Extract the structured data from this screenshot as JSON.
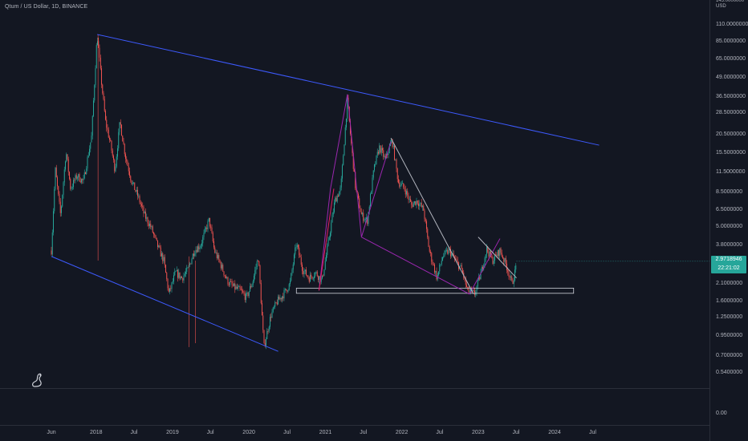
{
  "header": {
    "title": "Qtum / US Dollar, 1D, BINANCE"
  },
  "chart_data": {
    "type": "candlestick",
    "title": "Qtum / US Dollar, 1D, BINANCE",
    "y_scale": "log",
    "y_unit": "USD",
    "y_ticks": [
      "110.0000000",
      "85.0000000",
      "65.0000000",
      "49.0000000",
      "36.5000000",
      "28.5000000",
      "20.5000000",
      "15.5000000",
      "11.5000000",
      "8.5000000",
      "6.5000000",
      "5.0000000",
      "3.8000000",
      "2.1000000",
      "1.6000000",
      "1.2500000",
      "0.9500000",
      "0.7000000",
      "0.5400000"
    ],
    "y_tick_values": [
      110,
      85,
      65,
      49,
      36.5,
      28.5,
      20.5,
      15.5,
      11.5,
      8.5,
      6.5,
      5.0,
      3.8,
      2.1,
      1.6,
      1.25,
      0.95,
      0.7,
      0.54
    ],
    "y_partial_top_tick": "145.0000000",
    "x_ticks": [
      "Jun",
      "2018",
      "Jul",
      "2019",
      "Jul",
      "2020",
      "Jul",
      "2021",
      "Jul",
      "2022",
      "Jul",
      "2023",
      "Jul",
      "2024",
      "Jul"
    ],
    "x_tick_dates": [
      "2017-06-01",
      "2018-01-01",
      "2018-07-01",
      "2019-01-01",
      "2019-07-01",
      "2020-01-01",
      "2020-07-01",
      "2021-01-01",
      "2021-07-01",
      "2022-01-01",
      "2022-07-01",
      "2023-01-01",
      "2023-07-01",
      "2024-01-01",
      "2024-07-01"
    ],
    "last_price": "2.9718946",
    "countdown": "22:21:02",
    "lower_pane_tick": "0.00",
    "price_path": [
      [
        "2017-06-01",
        3.5
      ],
      [
        "2017-06-20",
        12
      ],
      [
        "2017-07-15",
        6
      ],
      [
        "2017-08-10",
        16
      ],
      [
        "2017-09-01",
        9
      ],
      [
        "2017-10-01",
        11
      ],
      [
        "2017-11-01",
        10
      ],
      [
        "2017-12-10",
        20
      ],
      [
        "2018-01-06",
        95
      ],
      [
        "2018-01-25",
        48
      ],
      [
        "2018-02-15",
        25
      ],
      [
        "2018-03-10",
        18
      ],
      [
        "2018-04-01",
        12
      ],
      [
        "2018-04-25",
        25
      ],
      [
        "2018-05-20",
        15
      ],
      [
        "2018-06-20",
        10
      ],
      [
        "2018-07-20",
        8
      ],
      [
        "2018-08-20",
        6
      ],
      [
        "2018-09-20",
        5
      ],
      [
        "2018-10-20",
        3.8
      ],
      [
        "2018-11-20",
        3
      ],
      [
        "2018-12-15",
        1.8
      ],
      [
        "2019-01-15",
        2.5
      ],
      [
        "2019-02-15",
        2.3
      ],
      [
        "2019-03-15",
        2.6
      ],
      [
        "2019-04-15",
        3.5
      ],
      [
        "2019-05-15",
        3.8
      ],
      [
        "2019-06-25",
        5.6
      ],
      [
        "2019-07-20",
        3.5
      ],
      [
        "2019-08-20",
        2.8
      ],
      [
        "2019-09-20",
        2.2
      ],
      [
        "2019-10-20",
        2.0
      ],
      [
        "2019-11-20",
        1.9
      ],
      [
        "2019-12-20",
        1.7
      ],
      [
        "2020-01-20",
        2.2
      ],
      [
        "2020-02-15",
        3.2
      ],
      [
        "2020-03-13",
        0.8
      ],
      [
        "2020-04-15",
        1.3
      ],
      [
        "2020-05-15",
        1.6
      ],
      [
        "2020-06-15",
        1.8
      ],
      [
        "2020-07-15",
        2.1
      ],
      [
        "2020-08-15",
        3.9
      ],
      [
        "2020-09-15",
        2.6
      ],
      [
        "2020-10-15",
        2.3
      ],
      [
        "2020-11-15",
        2.5
      ],
      [
        "2020-12-15",
        2.2
      ],
      [
        "2021-01-10",
        3.6
      ],
      [
        "2021-02-15",
        7.5
      ],
      [
        "2021-03-15",
        9
      ],
      [
        "2021-04-16",
        35
      ],
      [
        "2021-05-01",
        20
      ],
      [
        "2021-05-25",
        9
      ],
      [
        "2021-06-22",
        6
      ],
      [
        "2021-07-20",
        5.5
      ],
      [
        "2021-08-20",
        12
      ],
      [
        "2021-09-15",
        17
      ],
      [
        "2021-10-15",
        14
      ],
      [
        "2021-11-15",
        19
      ],
      [
        "2021-12-15",
        10
      ],
      [
        "2022-01-15",
        9
      ],
      [
        "2022-02-15",
        7
      ],
      [
        "2022-03-15",
        7.5
      ],
      [
        "2022-04-15",
        6.5
      ],
      [
        "2022-05-12",
        3.5
      ],
      [
        "2022-06-18",
        2.3
      ],
      [
        "2022-07-15",
        3.2
      ],
      [
        "2022-08-15",
        3.5
      ],
      [
        "2022-09-15",
        3.0
      ],
      [
        "2022-10-15",
        2.6
      ],
      [
        "2022-11-10",
        1.9
      ],
      [
        "2022-12-15",
        1.8
      ],
      [
        "2023-01-15",
        2.5
      ],
      [
        "2023-02-10",
        3.6
      ],
      [
        "2023-03-10",
        3.0
      ],
      [
        "2023-04-15",
        3.5
      ],
      [
        "2023-05-15",
        2.8
      ],
      [
        "2023-06-12",
        2.1
      ],
      [
        "2023-06-28",
        2.6
      ],
      [
        "2023-07-03",
        2.97
      ]
    ],
    "drawings": [
      {
        "kind": "trendline",
        "color": "#3d5afe",
        "from": [
          "2018-01-06",
          95
        ],
        "to": [
          "2024-08-01",
          17.5
        ]
      },
      {
        "kind": "trendline",
        "color": "#3d5afe",
        "from": [
          "2017-06-01",
          3.2
        ],
        "to": [
          "2020-05-20",
          0.75
        ]
      },
      {
        "kind": "rectangle",
        "color": "#d1d4dc",
        "from": [
          "2020-08-15",
          1.97
        ],
        "to": [
          "2024-04-01",
          1.82
        ]
      },
      {
        "kind": "polyline",
        "color": "#9c27b0",
        "points": [
          [
            "2020-12-01",
            1.9
          ],
          [
            "2021-01-25",
            9
          ],
          [
            "2021-04-16",
            38
          ]
        ]
      },
      {
        "kind": "polyline",
        "color": "#9c27b0",
        "points": [
          [
            "2021-04-16",
            38
          ],
          [
            "2021-06-22",
            4.3
          ],
          [
            "2021-11-10",
            18.5
          ]
        ]
      },
      {
        "kind": "polyline",
        "color": "#9c27b0",
        "points": [
          [
            "2021-06-22",
            4.3
          ],
          [
            "2022-11-20",
            1.8
          ],
          [
            "2023-04-15",
            4.2
          ]
        ]
      },
      {
        "kind": "trendline",
        "color": "#e91e63",
        "from": [
          "2020-12-01",
          1.9
        ],
        "to": [
          "2021-02-10",
          9
        ]
      },
      {
        "kind": "trendline",
        "color": "#b2b5be",
        "from": [
          "2021-11-10",
          19.5
        ],
        "to": [
          "2022-12-10",
          1.8
        ]
      },
      {
        "kind": "trendline",
        "color": "#b2b5be",
        "from": [
          "2023-01-01",
          4.3
        ],
        "to": [
          "2023-07-03",
          2.3
        ]
      }
    ]
  }
}
